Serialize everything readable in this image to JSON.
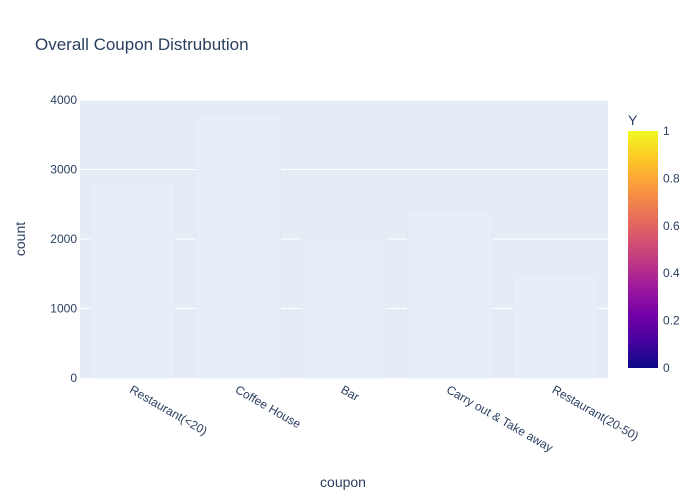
{
  "chart_data": {
    "type": "bar",
    "title": "Overall Coupon Distrubution",
    "xlabel": "coupon",
    "ylabel": "count",
    "categories": [
      "Restaurant(<20)",
      "Coffee House",
      "Bar",
      "Carry out & Take away",
      "Restaurant(20-50)"
    ],
    "values": [
      2786,
      3816,
      2017,
      2393,
      1492
    ],
    "ylim": [
      0,
      4000
    ],
    "yticks": [
      0,
      1000,
      2000,
      3000,
      4000
    ],
    "yticks_labels": [
      "0",
      "1000",
      "2000",
      "3000",
      "4000"
    ],
    "grid": true,
    "colorbar": {
      "title": "Y",
      "ticks": [
        0,
        0.2,
        0.4,
        0.6,
        0.8,
        1
      ],
      "tick_labels": [
        "0",
        "0.2",
        "0.4",
        "0.6",
        "0.8",
        "1"
      ],
      "colors": [
        "#0d0887",
        "#46039f",
        "#7201a8",
        "#9c179e",
        "#bd3786",
        "#d8576b",
        "#ed7953",
        "#fb9f3a",
        "#fdca26",
        "#f0f921"
      ]
    },
    "colors": {
      "plot_bg": "#e5ecf6",
      "bar_fill": "#e8eef7",
      "grid": "#ffffff",
      "text": "#2a3f5f"
    }
  }
}
